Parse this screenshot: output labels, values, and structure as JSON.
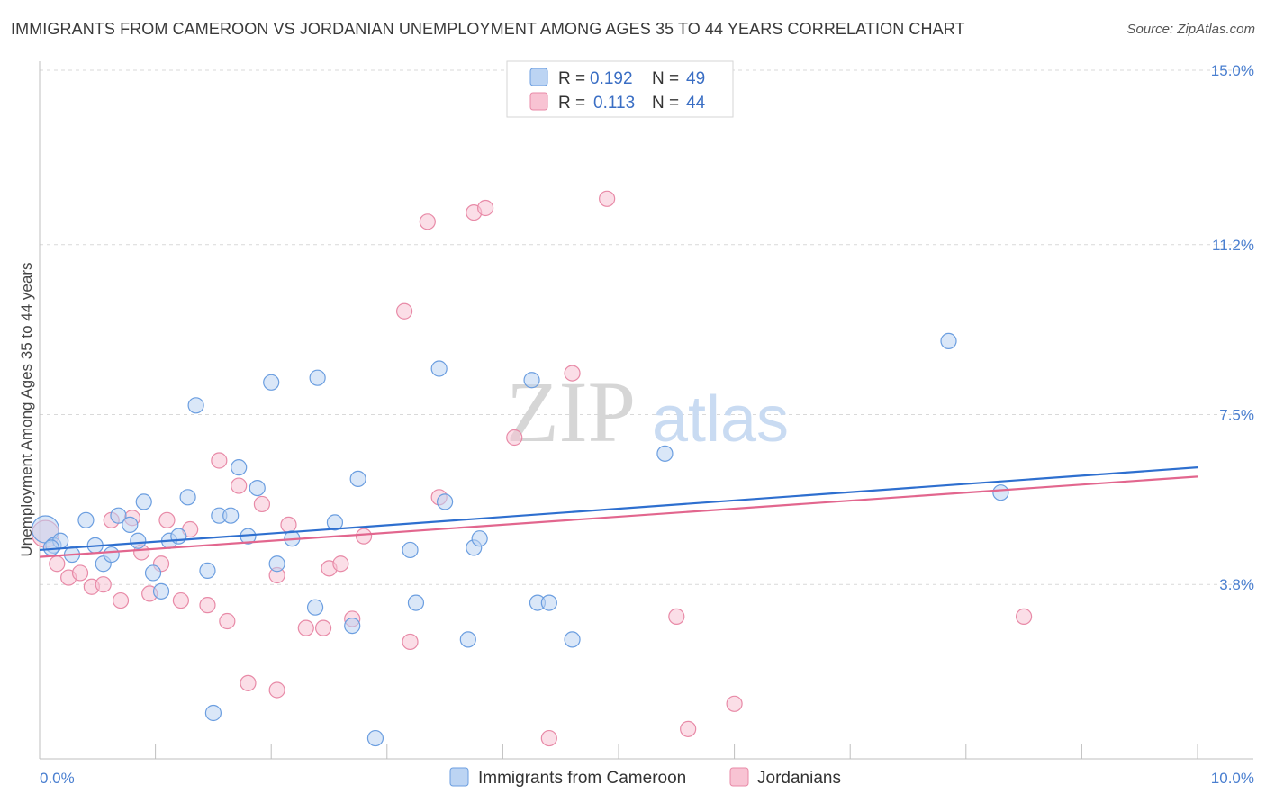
{
  "title": "IMMIGRANTS FROM CAMEROON VS JORDANIAN UNEMPLOYMENT AMONG AGES 35 TO 44 YEARS CORRELATION CHART",
  "source": "Source: ZipAtlas.com",
  "watermark": {
    "zip": "ZIP",
    "atlas": "atlas"
  },
  "colors": {
    "blue_fill": "#bcd4f3",
    "blue_stroke": "#6b9ee0",
    "blue_line": "#2e6fcf",
    "pink_fill": "#f8c3d3",
    "pink_stroke": "#e88aa7",
    "pink_line": "#e2668e",
    "grid": "#d9d9d9",
    "axis_label": "#4a7fd0"
  },
  "legend": {
    "rows": [
      {
        "r_label": "R =",
        "r_value": "0.192",
        "n_label": "N =",
        "n_value": "49"
      },
      {
        "r_label": "R =",
        "r_value": "0.113",
        "n_label": "N =",
        "n_value": "44"
      }
    ]
  },
  "chart_data": {
    "type": "scatter",
    "title": "IMMIGRANTS FROM CAMEROON VS JORDANIAN UNEMPLOYMENT AMONG AGES 35 TO 44 YEARS CORRELATION CHART",
    "xlabel": "",
    "ylabel": "Unemployment Among Ages 35 to 44 years",
    "xlim": [
      0,
      10
    ],
    "ylim": [
      0,
      15
    ],
    "x_tick_labels": [
      "0.0%",
      "10.0%"
    ],
    "y_ticks": [
      3.8,
      7.5,
      11.2,
      15.0
    ],
    "y_tick_labels": [
      "3.8%",
      "7.5%",
      "11.2%",
      "15.0%"
    ],
    "series": [
      {
        "name": "Immigrants from Cameroon",
        "r": 0.192,
        "n": 49,
        "trend": {
          "x0": 0,
          "y0": 4.55,
          "x1": 10,
          "y1": 6.35
        },
        "points": [
          [
            0.05,
            5.0
          ],
          [
            0.12,
            4.65
          ],
          [
            0.18,
            4.75
          ],
          [
            0.28,
            4.45
          ],
          [
            0.4,
            5.2
          ],
          [
            0.48,
            4.65
          ],
          [
            0.55,
            4.25
          ],
          [
            0.62,
            4.45
          ],
          [
            0.68,
            5.3
          ],
          [
            0.78,
            5.1
          ],
          [
            0.85,
            4.75
          ],
          [
            0.9,
            5.6
          ],
          [
            0.98,
            4.05
          ],
          [
            1.05,
            3.65
          ],
          [
            1.12,
            4.75
          ],
          [
            1.2,
            4.85
          ],
          [
            1.28,
            5.7
          ],
          [
            1.35,
            7.7
          ],
          [
            1.45,
            4.1
          ],
          [
            1.5,
            1.0
          ],
          [
            1.55,
            5.3
          ],
          [
            1.65,
            5.3
          ],
          [
            1.72,
            6.35
          ],
          [
            1.8,
            4.85
          ],
          [
            1.88,
            5.9
          ],
          [
            2.0,
            8.2
          ],
          [
            2.05,
            4.25
          ],
          [
            2.18,
            4.8
          ],
          [
            2.38,
            3.3
          ],
          [
            2.4,
            8.3
          ],
          [
            2.55,
            5.15
          ],
          [
            2.7,
            2.9
          ],
          [
            2.75,
            6.1
          ],
          [
            2.9,
            0.45
          ],
          [
            3.2,
            4.55
          ],
          [
            3.25,
            3.4
          ],
          [
            3.45,
            8.5
          ],
          [
            3.5,
            5.6
          ],
          [
            3.7,
            2.6
          ],
          [
            3.75,
            4.6
          ],
          [
            3.8,
            4.8
          ],
          [
            4.25,
            8.25
          ],
          [
            4.3,
            3.4
          ],
          [
            4.4,
            3.4
          ],
          [
            4.6,
            2.6
          ],
          [
            5.4,
            6.65
          ],
          [
            7.85,
            9.1
          ],
          [
            8.3,
            5.8
          ],
          [
            0.1,
            4.6
          ]
        ]
      },
      {
        "name": "Jordanians",
        "r": 0.113,
        "n": 44,
        "trend": {
          "x0": 0,
          "y0": 4.4,
          "x1": 10,
          "y1": 6.15
        },
        "points": [
          [
            0.05,
            4.9
          ],
          [
            0.15,
            4.25
          ],
          [
            0.25,
            3.95
          ],
          [
            0.35,
            4.05
          ],
          [
            0.45,
            3.75
          ],
          [
            0.55,
            3.8
          ],
          [
            0.62,
            5.2
          ],
          [
            0.7,
            3.45
          ],
          [
            0.8,
            5.25
          ],
          [
            0.88,
            4.5
          ],
          [
            0.95,
            3.6
          ],
          [
            1.05,
            4.25
          ],
          [
            1.1,
            5.2
          ],
          [
            1.22,
            3.45
          ],
          [
            1.3,
            5.0
          ],
          [
            1.45,
            3.35
          ],
          [
            1.55,
            6.5
          ],
          [
            1.62,
            3.0
          ],
          [
            1.72,
            5.95
          ],
          [
            1.8,
            1.65
          ],
          [
            1.92,
            5.55
          ],
          [
            2.05,
            1.5
          ],
          [
            2.05,
            4.0
          ],
          [
            2.15,
            5.1
          ],
          [
            2.3,
            2.85
          ],
          [
            2.45,
            2.85
          ],
          [
            2.5,
            4.15
          ],
          [
            2.6,
            4.25
          ],
          [
            2.7,
            3.05
          ],
          [
            2.8,
            4.85
          ],
          [
            3.15,
            9.75
          ],
          [
            3.2,
            2.55
          ],
          [
            3.35,
            11.7
          ],
          [
            3.45,
            5.7
          ],
          [
            3.75,
            11.9
          ],
          [
            3.85,
            12.0
          ],
          [
            4.1,
            7.0
          ],
          [
            4.4,
            0.45
          ],
          [
            4.6,
            8.4
          ],
          [
            4.9,
            12.2
          ],
          [
            5.5,
            3.1
          ],
          [
            5.6,
            0.65
          ],
          [
            6.0,
            1.2
          ],
          [
            8.5,
            3.1
          ]
        ]
      }
    ]
  },
  "bottom_legend": {
    "items": [
      "Immigrants from Cameroon",
      "Jordanians"
    ]
  }
}
